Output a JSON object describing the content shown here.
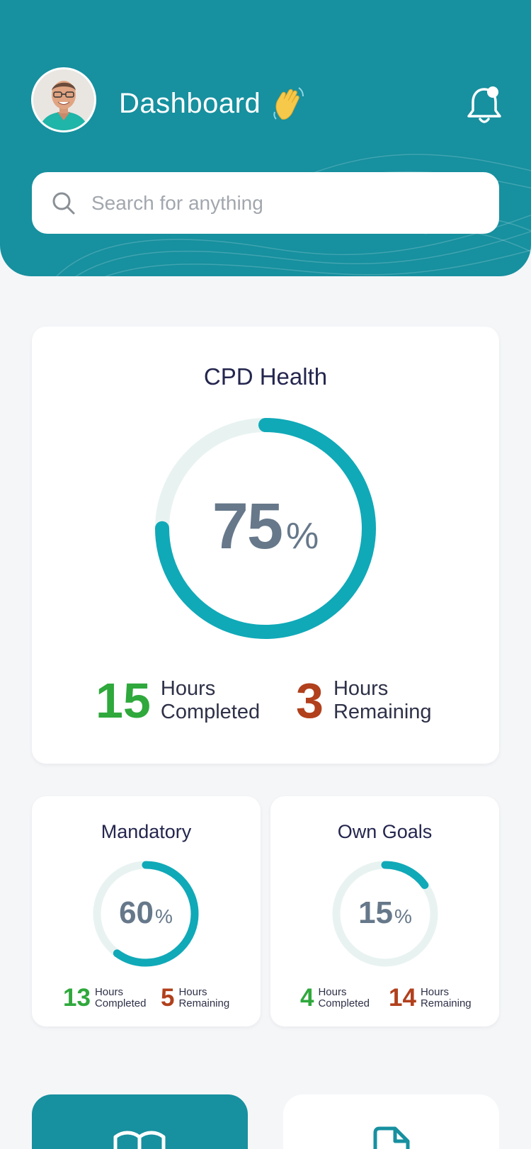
{
  "header": {
    "title": "Dashboard",
    "avatar_icon": "user-avatar-photo",
    "wave_icon": "waving-hand-emoji",
    "notification_icon": "bell-icon",
    "colors": {
      "primary": "#17909f",
      "accent": "#10a9b8"
    }
  },
  "search": {
    "placeholder": "Search for anything",
    "icon": "search-icon"
  },
  "cpd_health": {
    "title": "CPD Health",
    "percent_value": "75",
    "percent_sign": "%",
    "progress": 0.75,
    "completed_value": "15",
    "completed_label_1": "Hours",
    "completed_label_2": "Completed",
    "remaining_value": "3",
    "remaining_label_1": "Hours",
    "remaining_label_2": "Remaining",
    "completed_color": "#2fa83c",
    "remaining_color": "#b1401c"
  },
  "cards": [
    {
      "title": "Mandatory",
      "percent_value": "60",
      "percent_sign": "%",
      "progress": 0.6,
      "completed_value": "13",
      "completed_label_1": "Hours",
      "completed_label_2": "Completed",
      "remaining_value": "5",
      "remaining_label_1": "Hours",
      "remaining_label_2": "Remaining"
    },
    {
      "title": "Own Goals",
      "percent_value": "15",
      "percent_sign": "%",
      "progress": 0.15,
      "completed_value": "4",
      "completed_label_1": "Hours",
      "completed_label_2": "Completed",
      "remaining_value": "14",
      "remaining_label_1": "Hours",
      "remaining_label_2": "Remaining"
    }
  ],
  "bottom_tiles": [
    {
      "icon": "book-icon"
    },
    {
      "icon": "document-icon"
    }
  ]
}
